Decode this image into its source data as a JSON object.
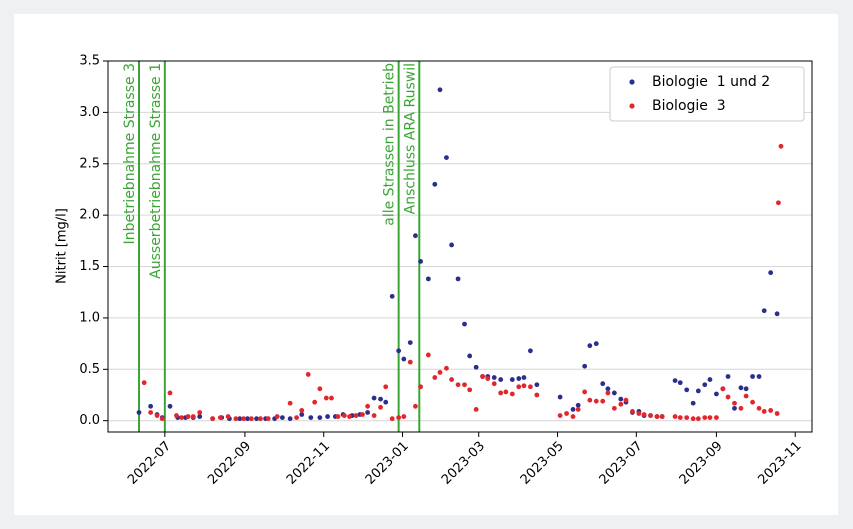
{
  "chart_data": {
    "type": "scatter",
    "ylabel": "Nitrit [mg/l]",
    "xlim": [
      "2022-05-18",
      "2023-11-14"
    ],
    "ylim": [
      -0.11,
      3.5
    ],
    "xticks": [
      {
        "value": "2022-07-01",
        "label": "2022-07"
      },
      {
        "value": "2022-09-01",
        "label": "2022-09"
      },
      {
        "value": "2022-11-01",
        "label": "2022-11"
      },
      {
        "value": "2023-01-01",
        "label": "2023-01"
      },
      {
        "value": "2023-03-01",
        "label": "2023-03"
      },
      {
        "value": "2023-05-01",
        "label": "2023-05"
      },
      {
        "value": "2023-07-01",
        "label": "2023-07"
      },
      {
        "value": "2023-09-01",
        "label": "2023-09"
      },
      {
        "value": "2023-11-01",
        "label": "2023-11"
      }
    ],
    "yticks": [
      {
        "value": 0,
        "label": "0.0"
      },
      0.5,
      {
        "value": 1,
        "label": "1.0"
      },
      1.5,
      {
        "value": 2,
        "label": "2.0"
      },
      2.5,
      {
        "value": 3,
        "label": "3.0"
      },
      3.5
    ],
    "grid": "y",
    "legend": "upper right",
    "vlines": [
      {
        "x": "2022-06-11",
        "label": "Inbetriebnahme Strasse 3",
        "color": "#3aa535"
      },
      {
        "x": "2022-07-01",
        "label": "Ausserbetriebnahme Strasse 1",
        "color": "#3aa535"
      },
      {
        "x": "2022-12-29",
        "label": "alle Strassen in Betrieb",
        "color": "#3aa535"
      },
      {
        "x": "2023-01-14",
        "label": "Anschluss ARA Ruswil",
        "color": "#3aa535"
      }
    ],
    "series": [
      {
        "name": "Biologie  1 und 2",
        "color": "#2b2f8c",
        "x": [
          "2022-06-11",
          "2022-06-20",
          "2022-06-25",
          "2022-06-29",
          "2022-07-05",
          "2022-07-11",
          "2022-07-17",
          "2022-07-23",
          "2022-07-28",
          "2022-08-07",
          "2022-08-14",
          "2022-08-20",
          "2022-08-28",
          "2022-09-03",
          "2022-09-10",
          "2022-09-17",
          "2022-09-24",
          "2022-09-30",
          "2022-10-06",
          "2022-10-15",
          "2022-10-22",
          "2022-10-29",
          "2022-11-04",
          "2022-11-10",
          "2022-11-16",
          "2022-11-23",
          "2022-11-29",
          "2022-12-05",
          "2022-12-10",
          "2022-12-15",
          "2022-12-19",
          "2022-12-24",
          "2022-12-29",
          "2023-01-02",
          "2023-01-07",
          "2023-01-11",
          "2023-01-15",
          "2023-01-21",
          "2023-01-26",
          "2023-01-30",
          "2023-02-04",
          "2023-02-08",
          "2023-02-13",
          "2023-02-18",
          "2023-02-22",
          "2023-02-27",
          "2023-03-04",
          "2023-03-08",
          "2023-03-13",
          "2023-03-18",
          "2023-03-27",
          "2023-04-01",
          "2023-04-05",
          "2023-04-10",
          "2023-04-15",
          "2023-05-03",
          "2023-05-13",
          "2023-05-17",
          "2023-05-22",
          "2023-05-26",
          "2023-05-31",
          "2023-06-05",
          "2023-06-09",
          "2023-06-14",
          "2023-06-19",
          "2023-06-23",
          "2023-06-28",
          "2023-07-03",
          "2023-07-07",
          "2023-07-12",
          "2023-07-17",
          "2023-07-21",
          "2023-07-31",
          "2023-08-04",
          "2023-08-09",
          "2023-08-14",
          "2023-08-18",
          "2023-08-23",
          "2023-08-27",
          "2023-09-01",
          "2023-09-06",
          "2023-09-10",
          "2023-09-15",
          "2023-09-20",
          "2023-09-24",
          "2023-09-29",
          "2023-10-04",
          "2023-10-08",
          "2023-10-13",
          "2023-10-18"
        ],
        "values": [
          0.08,
          0.14,
          0.06,
          0.03,
          0.14,
          0.03,
          0.03,
          0.03,
          0.04,
          0.02,
          0.03,
          0.02,
          0.02,
          0.02,
          0.02,
          0.02,
          0.02,
          0.03,
          0.02,
          0.06,
          0.03,
          0.03,
          0.04,
          0.04,
          0.06,
          0.05,
          0.06,
          0.08,
          0.22,
          0.21,
          0.18,
          1.21,
          0.68,
          0.6,
          0.76,
          1.8,
          1.55,
          1.38,
          2.3,
          3.22,
          2.56,
          1.71,
          1.38,
          0.94,
          0.63,
          0.52,
          0.43,
          0.43,
          0.42,
          0.4,
          0.4,
          0.41,
          0.42,
          0.68,
          0.35,
          0.23,
          0.11,
          0.15,
          0.53,
          0.73,
          0.75,
          0.36,
          0.31,
          0.27,
          0.21,
          0.18,
          0.08,
          0.09,
          0.05,
          0.05,
          0.04,
          0.04,
          0.39,
          0.37,
          0.3,
          0.17,
          0.29,
          0.35,
          0.4,
          0.26,
          0.31,
          0.43,
          0.12,
          0.32,
          0.31,
          0.43,
          0.43,
          1.07,
          1.44,
          1.04
        ]
      },
      {
        "name": "Biologie  3",
        "color": "#e3262b",
        "x": [
          "2022-06-15",
          "2022-06-20",
          "2022-06-25",
          "2022-06-29",
          "2022-07-05",
          "2022-07-10",
          "2022-07-14",
          "2022-07-19",
          "2022-07-23",
          "2022-07-28",
          "2022-08-07",
          "2022-08-13",
          "2022-08-19",
          "2022-08-25",
          "2022-08-31",
          "2022-09-06",
          "2022-09-13",
          "2022-09-19",
          "2022-09-26",
          "2022-10-06",
          "2022-10-11",
          "2022-10-15",
          "2022-10-20",
          "2022-10-25",
          "2022-10-29",
          "2022-11-03",
          "2022-11-07",
          "2022-11-12",
          "2022-11-17",
          "2022-11-21",
          "2022-11-26",
          "2022-12-01",
          "2022-12-05",
          "2022-12-10",
          "2022-12-15",
          "2022-12-19",
          "2022-12-24",
          "2022-12-29",
          "2023-01-02",
          "2023-01-07",
          "2023-01-11",
          "2023-01-15",
          "2023-01-21",
          "2023-01-26",
          "2023-01-30",
          "2023-02-04",
          "2023-02-08",
          "2023-02-13",
          "2023-02-18",
          "2023-02-22",
          "2023-02-27",
          "2023-03-04",
          "2023-03-08",
          "2023-03-13",
          "2023-03-18",
          "2023-03-22",
          "2023-03-27",
          "2023-04-01",
          "2023-04-05",
          "2023-04-10",
          "2023-04-15",
          "2023-05-03",
          "2023-05-08",
          "2023-05-13",
          "2023-05-17",
          "2023-05-22",
          "2023-05-26",
          "2023-05-31",
          "2023-06-05",
          "2023-06-09",
          "2023-06-14",
          "2023-06-19",
          "2023-06-23",
          "2023-06-28",
          "2023-07-03",
          "2023-07-07",
          "2023-07-12",
          "2023-07-17",
          "2023-07-21",
          "2023-07-31",
          "2023-08-04",
          "2023-08-09",
          "2023-08-14",
          "2023-08-18",
          "2023-08-23",
          "2023-08-27",
          "2023-09-01",
          "2023-09-06",
          "2023-09-10",
          "2023-09-15",
          "2023-09-20",
          "2023-09-24",
          "2023-09-29",
          "2023-10-04",
          "2023-10-08",
          "2023-10-13",
          "2023-10-18",
          "2023-10-19",
          "2023-10-21"
        ],
        "values": [
          0.37,
          0.08,
          0.05,
          0.02,
          0.27,
          0.05,
          0.03,
          0.04,
          0.04,
          0.08,
          0.02,
          0.03,
          0.04,
          0.02,
          0.02,
          0.02,
          0.02,
          0.02,
          0.04,
          0.17,
          0.03,
          0.1,
          0.45,
          0.18,
          0.31,
          0.22,
          0.22,
          0.04,
          0.05,
          0.04,
          0.05,
          0.06,
          0.14,
          0.05,
          0.13,
          0.33,
          0.02,
          0.03,
          0.04,
          0.57,
          0.14,
          0.33,
          0.64,
          0.42,
          0.47,
          0.51,
          0.4,
          0.35,
          0.35,
          0.3,
          0.11,
          0.43,
          0.41,
          0.36,
          0.27,
          0.28,
          0.26,
          0.33,
          0.34,
          0.33,
          0.25,
          0.05,
          0.07,
          0.04,
          0.11,
          0.28,
          0.2,
          0.19,
          0.19,
          0.27,
          0.12,
          0.16,
          0.2,
          0.09,
          0.07,
          0.06,
          0.05,
          0.04,
          0.04,
          0.04,
          0.03,
          0.03,
          0.02,
          0.02,
          0.03,
          0.03,
          0.03,
          0.31,
          0.23,
          0.17,
          0.12,
          0.24,
          0.18,
          0.12,
          0.09,
          0.1,
          0.07,
          2.12,
          2.67
        ]
      }
    ]
  }
}
